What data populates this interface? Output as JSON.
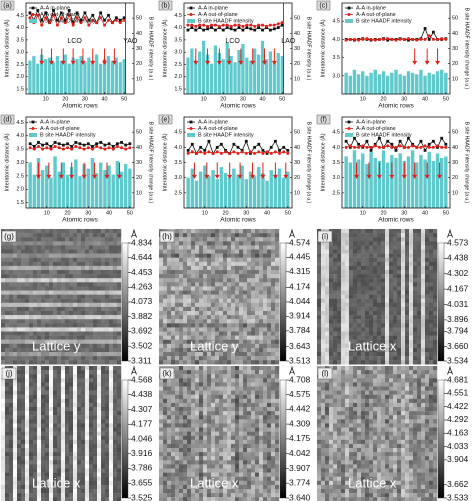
{
  "chart_data": [
    {
      "type": "line",
      "label": "(a)",
      "x_label": "Atomic rows",
      "y_label": "Interatomic distance (Å)",
      "y2_label": "B site HAADF intensity (a.u.)",
      "legend": "top-left",
      "x": [
        2,
        4,
        6,
        8,
        10,
        12,
        14,
        16,
        18,
        20,
        22,
        24,
        26,
        28,
        30,
        32,
        34,
        36,
        38,
        40,
        42,
        44,
        46,
        48,
        50
      ],
      "xlim": [
        0,
        55
      ],
      "xticks": [
        10,
        20,
        30,
        40,
        50
      ],
      "ylim": [
        1.3,
        5.0
      ],
      "yticks": [
        1.5,
        {
          "value": 2,
          "label": "2.0"
        },
        2.5,
        {
          "value": 3,
          "label": "3.0"
        },
        3.5,
        {
          "value": 4,
          "label": "4.0"
        },
        4.5
      ],
      "y2lim": [
        0,
        60
      ],
      "y2ticks": [
        10,
        20,
        30,
        40,
        50
      ],
      "annotations": [
        "LCO",
        "YAO"
      ],
      "arrows_x": [
        8,
        13,
        19,
        24,
        29,
        34,
        40,
        45
      ],
      "series": [
        {
          "name": "A-A in-plane",
          "color": "#111111",
          "values": [
            4.6,
            4.3,
            4.7,
            4.3,
            4.6,
            4.2,
            4.7,
            4.3,
            4.6,
            4.3,
            4.7,
            4.2,
            4.6,
            4.3,
            4.6,
            4.3,
            4.5,
            4.2,
            4.6,
            4.3,
            4.5,
            4.2,
            4.4,
            4.3,
            4.4
          ]
        },
        {
          "name": "A-A out-of-plane",
          "color": "#e0201b",
          "values": [
            4.4,
            4.2,
            4.5,
            4.1,
            4.4,
            4.2,
            4.5,
            4.1,
            4.4,
            4.2,
            4.5,
            4.1,
            4.4,
            4.2,
            4.4,
            4.1,
            4.3,
            4.2,
            4.4,
            4.1,
            4.3,
            4.2,
            4.3,
            4.2,
            4.3
          ]
        },
        {
          "name": "B site HAADF intensity",
          "color": "#5fc9cc",
          "type": "bar",
          "axis": "y2",
          "values": [
            22,
            25,
            20,
            26,
            23,
            24,
            21,
            25,
            22,
            26,
            20,
            24,
            23,
            25,
            21,
            24,
            22,
            26,
            20,
            23,
            25,
            22,
            24,
            21,
            23
          ]
        }
      ]
    },
    {
      "type": "line",
      "label": "(b)",
      "x_label": "Atomic rows",
      "y_label": "Interatomic distance (Å)",
      "y2_label": "B site HAADF intensity (a.u.)",
      "legend": "top-left",
      "x": [
        2,
        4,
        6,
        8,
        10,
        12,
        14,
        16,
        18,
        20,
        22,
        24,
        26,
        28,
        30,
        32,
        34,
        36,
        38,
        40,
        42,
        44,
        46,
        48,
        50
      ],
      "xlim": [
        0,
        55
      ],
      "xticks": [
        10,
        20,
        30,
        40,
        50
      ],
      "ylim": [
        1.3,
        5.0
      ],
      "yticks": [
        1.5,
        {
          "value": 2,
          "label": "2.0"
        },
        2.5,
        {
          "value": 3,
          "label": "3.0"
        },
        3.5,
        {
          "value": 4,
          "label": "4.0"
        },
        4.5
      ],
      "y2lim": [
        0,
        60
      ],
      "y2ticks": [
        10,
        20,
        30,
        40,
        50
      ],
      "annotations": [
        "LCO",
        "LAO"
      ],
      "arrows_x": [
        6,
        12,
        18,
        23,
        29,
        35,
        41,
        46
      ],
      "series": [
        {
          "name": "A-A in-plane",
          "color": "#111111",
          "values": [
            3.9,
            4.0,
            3.9,
            4.0,
            3.9,
            3.95,
            4.0,
            3.9,
            4.0,
            3.9,
            4.0,
            3.95,
            3.9,
            4.0,
            3.9,
            4.0,
            3.95,
            3.9,
            4.0,
            3.9,
            4.0,
            3.9,
            3.95,
            4.0,
            4.1
          ]
        },
        {
          "name": "A-A out-of-plane",
          "color": "#e0201b",
          "values": [
            4.1,
            4.1,
            4.05,
            4.1,
            4.1,
            4.05,
            4.1,
            4.1,
            4.05,
            4.1,
            4.1,
            4.05,
            4.1,
            4.1,
            4.05,
            4.1,
            4.1,
            4.05,
            4.1,
            4.1,
            4.05,
            4.1,
            4.1,
            4.15,
            4.2
          ]
        },
        {
          "name": "B site HAADF intensity",
          "color": "#5fc9cc",
          "type": "bar",
          "axis": "y2",
          "values": [
            24,
            30,
            22,
            28,
            35,
            26,
            20,
            32,
            27,
            23,
            34,
            25,
            21,
            29,
            33,
            24,
            22,
            30,
            26,
            35,
            23,
            28,
            21,
            27,
            25
          ]
        }
      ]
    },
    {
      "type": "line",
      "label": "(c)",
      "x_label": "Atomic rows",
      "y_label": "Interatomic distance (Å)",
      "y2_label": "B site HAADF intensity change (a.u.)",
      "legend": "top-left",
      "x": [
        2,
        4,
        6,
        8,
        10,
        12,
        14,
        16,
        18,
        20,
        22,
        24,
        26,
        28,
        30,
        32,
        34,
        36,
        38,
        40,
        42,
        44,
        46,
        48,
        50
      ],
      "xlim": [
        0,
        52
      ],
      "xticks": [
        10,
        20,
        30,
        40,
        50
      ],
      "ylim": [
        2.5,
        5.0
      ],
      "yticks": [
        {
          "value": 3,
          "label": "3.0"
        },
        3.5,
        {
          "value": 4,
          "label": "4.0"
        },
        4.5
      ],
      "y2lim": [
        0,
        60
      ],
      "y2ticks": [
        10,
        20,
        30,
        40,
        50
      ],
      "arrows_x": [
        35,
        41,
        46
      ],
      "series": [
        {
          "name": "A-A in-plane",
          "color": "#111111",
          "values": [
            4.0,
            4.0,
            3.98,
            4.0,
            4.02,
            4.0,
            3.98,
            4.0,
            4.0,
            4.02,
            3.98,
            4.0,
            4.0,
            4.02,
            4.0,
            3.98,
            4.0,
            4.0,
            4.02,
            4.3,
            4.0,
            4.2,
            4.0,
            4.0,
            4.02
          ]
        },
        {
          "name": "A-A out-of-plane",
          "color": "#e0201b",
          "values": [
            3.98,
            4.0,
            4.0,
            3.98,
            4.0,
            4.02,
            4.0,
            3.98,
            4.0,
            4.0,
            4.02,
            4.0,
            3.98,
            4.0,
            4.0,
            4.02,
            4.0,
            3.98,
            4.0,
            4.0,
            4.1,
            4.0,
            4.0,
            4.02,
            4.0
          ]
        },
        {
          "name": "B site HAADF intensity",
          "color": "#5fc9cc",
          "type": "bar",
          "axis": "y2",
          "values": [
            14,
            12,
            16,
            13,
            15,
            12,
            14,
            16,
            13,
            15,
            12,
            14,
            16,
            13,
            12,
            15,
            14,
            13,
            16,
            12,
            14,
            13,
            15,
            16,
            14
          ]
        }
      ]
    },
    {
      "type": "line",
      "label": "(d)",
      "x_label": "Atomic rows",
      "y_label": "Interatomic distance (Å)",
      "y2_label": "B site HAADF intensity change (a.u.)",
      "legend": "top-left",
      "x": [
        2,
        4,
        6,
        8,
        10,
        12,
        14,
        16,
        18,
        20,
        22,
        24,
        26,
        28,
        30,
        32,
        34,
        36,
        38,
        40,
        42,
        44,
        46,
        48,
        50
      ],
      "xlim": [
        0,
        52
      ],
      "xticks": [
        10,
        20,
        30,
        40,
        50
      ],
      "ylim": [
        1.3,
        4.7
      ],
      "yticks": [
        1.5,
        {
          "value": 2,
          "label": "2.0"
        },
        2.5,
        {
          "value": 3,
          "label": "3.0"
        },
        3.5,
        {
          "value": 4,
          "label": "4.0"
        },
        4.5
      ],
      "y2lim": [
        0,
        60
      ],
      "y2ticks": [
        10,
        20,
        30,
        40,
        50
      ],
      "arrows_x": [
        6,
        11,
        17,
        22,
        28,
        33,
        39,
        45
      ],
      "series": [
        {
          "name": "A-A in-plane",
          "color": "#111111",
          "values": [
            3.7,
            3.6,
            3.75,
            3.65,
            3.7,
            3.6,
            3.75,
            3.7,
            3.65,
            3.7,
            3.6,
            3.75,
            3.7,
            3.65,
            3.7,
            3.6,
            3.7,
            3.75,
            3.65,
            3.7,
            3.6,
            3.7,
            3.75,
            3.65,
            3.7
          ]
        },
        {
          "name": "A-A out-of-plane",
          "color": "#e0201b",
          "values": [
            3.55,
            3.5,
            3.6,
            3.5,
            3.55,
            3.5,
            3.6,
            3.55,
            3.5,
            3.55,
            3.5,
            3.6,
            3.55,
            3.5,
            3.55,
            3.5,
            3.6,
            3.55,
            3.5,
            3.55,
            3.5,
            3.6,
            3.55,
            3.5,
            3.55
          ]
        },
        {
          "name": "B site HAADF intensity",
          "color": "#5fc9cc",
          "type": "bar",
          "axis": "y2",
          "values": [
            30,
            22,
            33,
            25,
            28,
            20,
            34,
            24,
            30,
            22,
            27,
            32,
            21,
            29,
            26,
            33,
            23,
            30,
            25,
            28,
            22,
            31,
            24,
            29,
            26
          ]
        }
      ]
    },
    {
      "type": "line",
      "label": "(e)",
      "x_label": "Atomic rows",
      "y_label": "Interatomic distance (Å)",
      "y2_label": "B site HAADF intensity change (a.u.)",
      "legend": "top-left",
      "x": [
        2,
        4,
        6,
        8,
        10,
        12,
        14,
        16,
        18,
        20,
        22,
        24,
        26,
        28,
        30,
        32,
        34,
        36,
        38,
        40,
        42,
        44,
        46,
        48,
        50
      ],
      "xlim": [
        0,
        52
      ],
      "xticks": [
        10,
        20,
        30,
        40,
        50
      ],
      "ylim": [
        2.0,
        5.0
      ],
      "yticks": [
        2.5,
        {
          "value": 3,
          "label": "3.0"
        },
        3.5,
        {
          "value": 4,
          "label": "4.0"
        },
        4.5
      ],
      "y2lim": [
        0,
        60
      ],
      "y2ticks": [
        10,
        20,
        30,
        40,
        50
      ],
      "arrows_x": [
        5,
        11,
        16,
        22,
        27,
        33,
        38,
        44,
        49
      ],
      "series": [
        {
          "name": "A-A in-plane",
          "color": "#111111",
          "values": [
            3.9,
            4.1,
            3.8,
            4.0,
            3.9,
            4.2,
            3.8,
            4.0,
            4.1,
            3.9,
            3.8,
            4.1,
            4.0,
            3.9,
            4.2,
            3.8,
            4.0,
            4.1,
            3.9,
            3.8,
            4.0,
            4.2,
            3.9,
            4.0,
            3.9
          ]
        },
        {
          "name": "A-A out-of-plane",
          "color": "#e0201b",
          "values": [
            3.8,
            3.85,
            3.8,
            3.85,
            3.8,
            3.85,
            3.8,
            3.85,
            3.8,
            3.85,
            3.8,
            3.85,
            3.8,
            3.85,
            3.8,
            3.85,
            3.8,
            3.85,
            3.8,
            3.85,
            3.8,
            3.85,
            3.8,
            3.85,
            3.8
          ]
        },
        {
          "name": "B site HAADF intensity",
          "color": "#5fc9cc",
          "type": "bar",
          "axis": "y2",
          "values": [
            20,
            26,
            18,
            24,
            28,
            21,
            25,
            19,
            27,
            23,
            20,
            26,
            22,
            28,
            19,
            24,
            21,
            27,
            23,
            18,
            25,
            22,
            26,
            20,
            24
          ]
        }
      ]
    },
    {
      "type": "line",
      "label": "(f)",
      "x_label": "Atomic rows",
      "y_label": "Interatomic distance (Å)",
      "y2_label": "B site HAADF intensity change (a.u.)",
      "legend": "top-left",
      "x": [
        2,
        4,
        6,
        8,
        10,
        12,
        14,
        16,
        18,
        20,
        22,
        24,
        26,
        28,
        30,
        32,
        34,
        36,
        38,
        40,
        42,
        44,
        46,
        48,
        50
      ],
      "xlim": [
        0,
        52
      ],
      "xticks": [
        10,
        20,
        30,
        40,
        50
      ],
      "ylim": [
        2.0,
        5.0
      ],
      "yticks": [
        2.5,
        {
          "value": 3,
          "label": "3.0"
        },
        3.5,
        {
          "value": 4,
          "label": "4.0"
        },
        4.5
      ],
      "y2lim": [
        0,
        60
      ],
      "y2ticks": [
        10,
        20,
        30,
        40,
        50
      ],
      "arrows_x": [
        7,
        13,
        18,
        24,
        30,
        35,
        41,
        47
      ],
      "series": [
        {
          "name": "A-A in-plane",
          "color": "#111111",
          "values": [
            4.2,
            4.0,
            4.3,
            4.1,
            4.0,
            4.2,
            3.9,
            4.1,
            4.3,
            4.0,
            4.2,
            4.1,
            3.9,
            4.2,
            4.0,
            4.3,
            4.1,
            4.0,
            4.2,
            3.9,
            4.1,
            4.2,
            4.0,
            4.3,
            4.1
          ]
        },
        {
          "name": "A-A out-of-plane",
          "color": "#e0201b",
          "values": [
            4.0,
            4.05,
            4.0,
            4.0,
            4.05,
            4.0,
            4.0,
            4.05,
            4.0,
            4.0,
            4.05,
            4.0,
            4.0,
            4.05,
            4.0,
            4.0,
            4.05,
            4.0,
            4.0,
            4.05,
            4.0,
            4.0,
            4.05,
            4.0,
            4.0
          ]
        },
        {
          "name": "B site HAADF intensity",
          "color": "#5fc9cc",
          "type": "bar",
          "axis": "y2",
          "values": [
            34,
            30,
            38,
            32,
            36,
            29,
            37,
            33,
            31,
            38,
            30,
            35,
            33,
            36,
            31,
            34,
            38,
            30,
            35,
            32,
            37,
            31,
            36,
            33,
            34
          ]
        }
      ]
    }
  ],
  "image_panels": [
    {
      "label": "(g)",
      "caption": "Lattice y",
      "unit": "Å",
      "clim": [
        3.311,
        4.834
      ],
      "ticks": [
        4.834,
        4.644,
        4.453,
        4.263,
        4.073,
        3.882,
        3.692,
        3.502,
        3.311
      ]
    },
    {
      "label": "(h)",
      "caption": "Lattice y",
      "unit": "Å",
      "clim": [
        3.513,
        4.574
      ],
      "ticks": [
        4.574,
        4.445,
        4.315,
        4.174,
        4.044,
        3.914,
        3.784,
        3.643,
        3.513
      ]
    },
    {
      "label": "(i)",
      "caption": "Lattice x",
      "unit": "Å",
      "clim": [
        3.534,
        4.573
      ],
      "ticks": [
        4.573,
        4.438,
        4.302,
        4.167,
        4.031,
        3.896,
        3.794,
        {
          "value": 3.66,
          "label": "3.660"
        },
        3.534
      ]
    },
    {
      "label": "(j)",
      "caption": "Lattice x",
      "unit": "Å",
      "clim": [
        3.525,
        4.568
      ],
      "ticks": [
        4.568,
        4.438,
        4.307,
        4.177,
        4.046,
        3.916,
        3.786,
        3.655,
        3.525
      ]
    },
    {
      "label": "(k)",
      "caption": "Lattice x",
      "unit": "Å",
      "clim": [
        3.64,
        4.708
      ],
      "ticks": [
        4.708,
        4.575,
        4.442,
        4.309,
        4.175,
        4.042,
        3.907,
        3.774,
        {
          "value": 3.64,
          "label": "3.640"
        }
      ]
    },
    {
      "label": "(l)",
      "caption": "Lattice x",
      "unit": "Å",
      "clim": [
        3.533,
        4.681
      ],
      "ticks": [
        4.681,
        4.551,
        4.422,
        4.292,
        4.163,
        4.033,
        3.904,
        3.662,
        3.533
      ]
    }
  ]
}
